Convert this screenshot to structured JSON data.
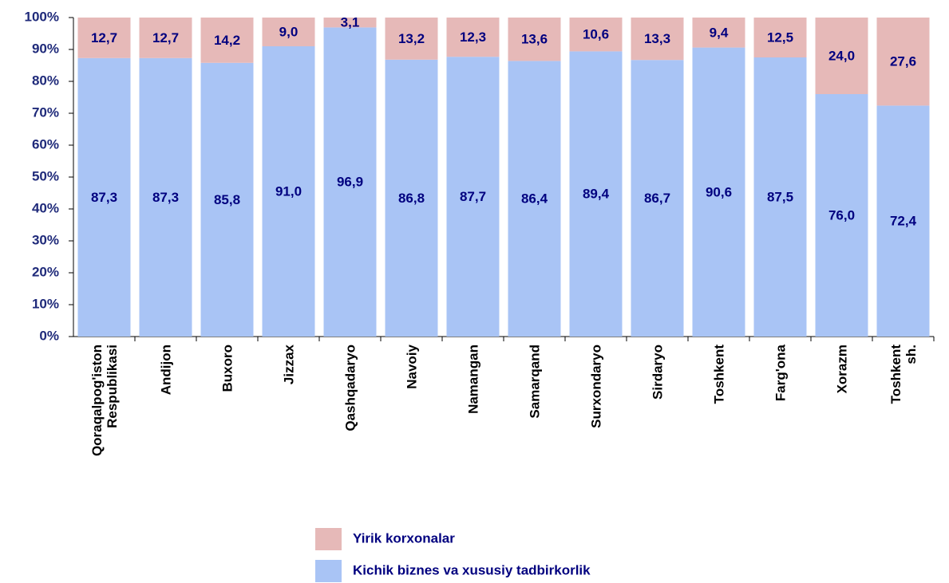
{
  "chart_data": {
    "type": "stacked_bar",
    "categories": [
      "Qoraqalpog'iston\nRespublikasi",
      "Andijon",
      "Buxoro",
      "Jizzax",
      "Qashqadaryo",
      "Navoiy",
      "Namangan",
      "Samarqand",
      "Surxondaryo",
      "Sirdaryo",
      "Toshkent",
      "Farg'ona",
      "Xorazm",
      "Toshkent sh."
    ],
    "series": [
      {
        "name": "Kichik biznes va xususiy tadbirkorlik",
        "color": "#a9c4f5",
        "values": [
          87.3,
          87.3,
          85.8,
          91.0,
          96.9,
          86.8,
          87.7,
          86.4,
          89.4,
          86.7,
          90.6,
          87.5,
          76.0,
          72.4
        ],
        "value_labels": [
          "87,3",
          "87,3",
          "85,8",
          "91,0",
          "96,9",
          "86,8",
          "87,7",
          "86,4",
          "89,4",
          "86,7",
          "90,6",
          "87,5",
          "76,0",
          "72,4"
        ]
      },
      {
        "name": "Yirik korxonalar",
        "color": "#e6b9b8",
        "values": [
          12.7,
          12.7,
          14.2,
          9.0,
          3.1,
          13.2,
          12.3,
          13.6,
          10.6,
          13.3,
          9.4,
          12.5,
          24.0,
          27.6
        ],
        "value_labels": [
          "12,7",
          "12,7",
          "14,2",
          "9,0",
          "3,1",
          "13,2",
          "12,3",
          "13,6",
          "10,6",
          "13,3",
          "9,4",
          "12,5",
          "24,0",
          "27,6"
        ]
      }
    ],
    "ylim": [
      0,
      100
    ],
    "yticks": [
      {
        "value": 0,
        "label": "0%"
      },
      {
        "value": 10,
        "label": "10%"
      },
      {
        "value": 20,
        "label": "20%"
      },
      {
        "value": 30,
        "label": "30%"
      },
      {
        "value": 40,
        "label": "40%"
      },
      {
        "value": 50,
        "label": "50%"
      },
      {
        "value": 60,
        "label": "60%"
      },
      {
        "value": 70,
        "label": "70%"
      },
      {
        "value": 80,
        "label": "80%"
      },
      {
        "value": 90,
        "label": "90%"
      },
      {
        "value": 100,
        "label": "100%"
      }
    ],
    "legend_order": "reversed"
  }
}
